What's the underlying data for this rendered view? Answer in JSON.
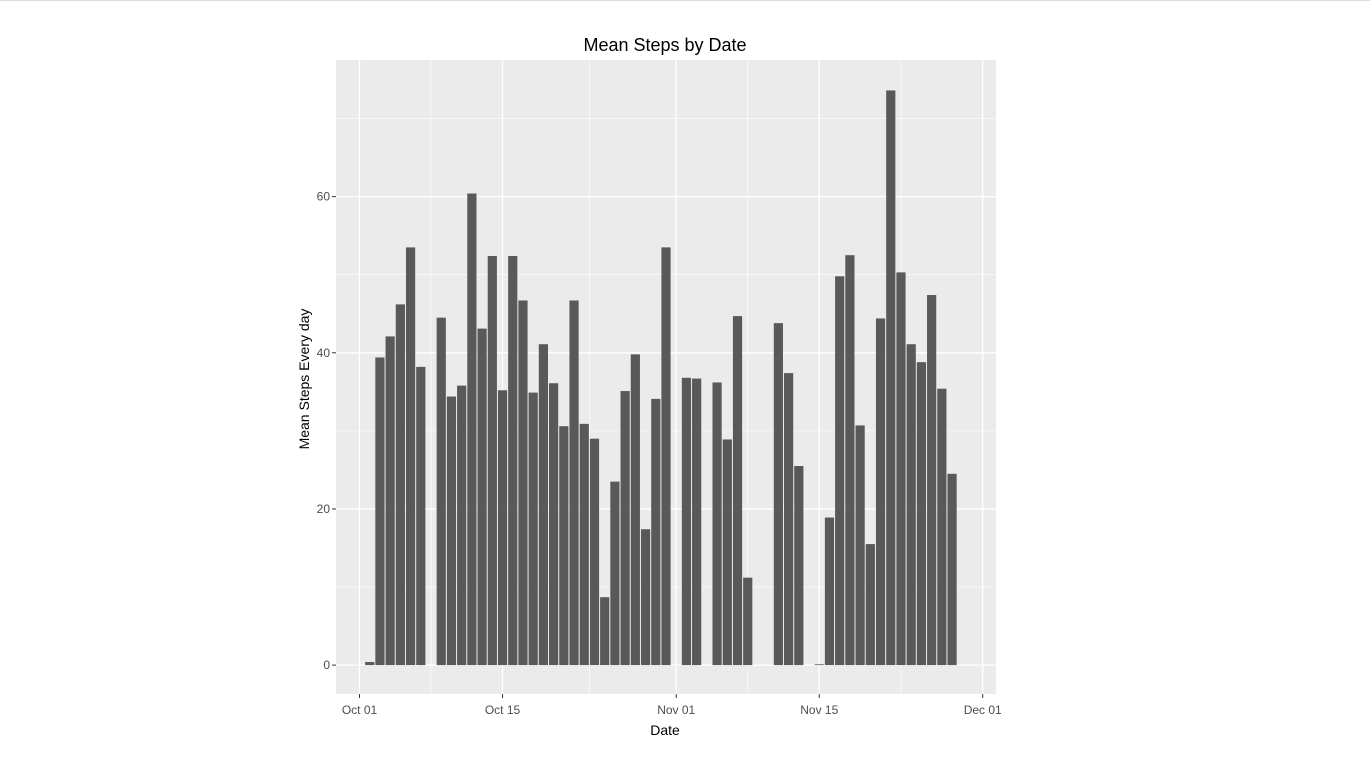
{
  "chart_data": {
    "type": "bar",
    "title": "Mean Steps by Date",
    "xlabel": "Date",
    "ylabel": "Mean Steps Every day",
    "start_date": "2012-10-01",
    "x_ticks": [
      {
        "label": "Oct 01",
        "day": 0
      },
      {
        "label": "Oct 15",
        "day": 14
      },
      {
        "label": "Nov 01",
        "day": 31
      },
      {
        "label": "Nov 15",
        "day": 45
      },
      {
        "label": "Dec 01",
        "day": 61
      }
    ],
    "y_ticks": [
      0,
      20,
      40,
      60
    ],
    "xlim": [
      -2.3,
      62.3
    ],
    "ylim": [
      -3.7,
      77.5
    ],
    "colors": {
      "bar": "#595959",
      "panel": "#ebebeb",
      "grid": "#ffffff"
    },
    "categories": [
      "2012-10-02",
      "2012-10-03",
      "2012-10-04",
      "2012-10-05",
      "2012-10-06",
      "2012-10-07",
      "2012-10-09",
      "2012-10-10",
      "2012-10-11",
      "2012-10-12",
      "2012-10-13",
      "2012-10-14",
      "2012-10-15",
      "2012-10-16",
      "2012-10-17",
      "2012-10-18",
      "2012-10-19",
      "2012-10-20",
      "2012-10-21",
      "2012-10-22",
      "2012-10-23",
      "2012-10-24",
      "2012-10-25",
      "2012-10-26",
      "2012-10-27",
      "2012-10-28",
      "2012-10-29",
      "2012-10-30",
      "2012-10-31",
      "2012-11-02",
      "2012-11-03",
      "2012-11-05",
      "2012-11-06",
      "2012-11-07",
      "2012-11-08",
      "2012-11-11",
      "2012-11-12",
      "2012-11-13",
      "2012-11-15",
      "2012-11-16",
      "2012-11-17",
      "2012-11-18",
      "2012-11-19",
      "2012-11-20",
      "2012-11-21",
      "2012-11-22",
      "2012-11-23",
      "2012-11-24",
      "2012-11-25",
      "2012-11-26",
      "2012-11-27",
      "2012-11-28",
      "2012-11-29"
    ],
    "days": [
      1,
      2,
      3,
      4,
      5,
      6,
      8,
      9,
      10,
      11,
      12,
      13,
      14,
      15,
      16,
      17,
      18,
      19,
      20,
      21,
      22,
      23,
      24,
      25,
      26,
      27,
      28,
      29,
      30,
      32,
      33,
      35,
      36,
      37,
      38,
      41,
      42,
      43,
      45,
      46,
      47,
      48,
      49,
      50,
      51,
      52,
      53,
      54,
      55,
      56,
      57,
      58,
      59
    ],
    "values": [
      0.4,
      39.4,
      42.1,
      46.2,
      53.5,
      38.2,
      44.5,
      34.4,
      35.8,
      60.4,
      43.1,
      52.4,
      35.2,
      52.4,
      46.7,
      34.9,
      41.1,
      36.1,
      30.6,
      46.7,
      30.9,
      29.0,
      8.7,
      23.5,
      35.1,
      39.8,
      17.4,
      34.1,
      53.5,
      36.8,
      36.7,
      36.2,
      28.9,
      44.7,
      11.2,
      43.8,
      37.4,
      25.5,
      0.1,
      18.9,
      49.8,
      52.5,
      30.7,
      15.5,
      44.4,
      73.6,
      50.3,
      41.1,
      38.8,
      47.4,
      35.4,
      24.5,
      0.0
    ]
  }
}
